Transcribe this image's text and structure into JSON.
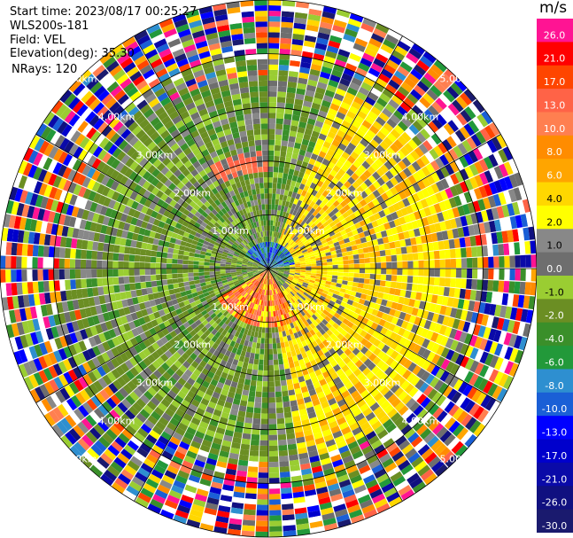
{
  "header": {
    "start_time": "Start time: 2023/08/17 00:25:27",
    "site": "WLS200s-181",
    "field": "Field: VEL",
    "elevation": "Elevation(deg): 35.30",
    "nrays": "NRays: 120"
  },
  "chart_data": {
    "type": "heatmap",
    "projection": "polar-ppi",
    "field": "VEL",
    "nrays": 120,
    "range_unit": "km",
    "range_rings": [
      {
        "value": 1.0,
        "label": "1.00km"
      },
      {
        "value": 2.0,
        "label": "2.00km"
      },
      {
        "value": 3.0,
        "label": "3.00km"
      },
      {
        "value": 4.0,
        "label": "4.00km"
      },
      {
        "value": 5.0,
        "label": "5.00km"
      }
    ],
    "max_range": 5.0,
    "colorbar": {
      "unit": "m/s",
      "levels": [
        -30.0,
        -26.0,
        -21.0,
        -17.0,
        -13.0,
        -10.0,
        -8.0,
        -6.0,
        -4.0,
        -2.0,
        -1.0,
        0.0,
        1.0,
        2.0,
        4.0,
        6.0,
        8.0,
        10.0,
        13.0,
        17.0,
        21.0,
        26.0
      ],
      "labels": [
        "-30.0",
        "-26.0",
        "-21.0",
        "-17.0",
        "-13.0",
        "-10.0",
        "-8.0",
        "-6.0",
        "-4.0",
        "-2.0",
        "-1.0",
        "0.0",
        "1.0",
        "2.0",
        "4.0",
        "6.0",
        "8.0",
        "10.0",
        "13.0",
        "17.0",
        "21.0",
        "26.0"
      ],
      "colors": [
        "#1a1a6e",
        "#101080",
        "#0a0aa8",
        "#0000cc",
        "#0000ff",
        "#1a5fd6",
        "#2e8fd0",
        "#22993a",
        "#3a8f2a",
        "#6b8e23",
        "#9acd32",
        "#6e6e6e",
        "#888888",
        "#ffff00",
        "#ffd700",
        "#ffa500",
        "#ff8c00",
        "#ff7f50",
        "#ff6347",
        "#ff4500",
        "#ff0000",
        "#ff1493"
      ]
    },
    "pattern": {
      "near_field": "mostly near-zero and weak negative velocities (green/olive) to the north and west; positive velocities (yellow) to the east and south-east; strong positive (orange/red) patch just south of centre; small negative (blue) core north of centre",
      "far_field": "noise beyond about 4 km (random mixed colours)"
    }
  }
}
